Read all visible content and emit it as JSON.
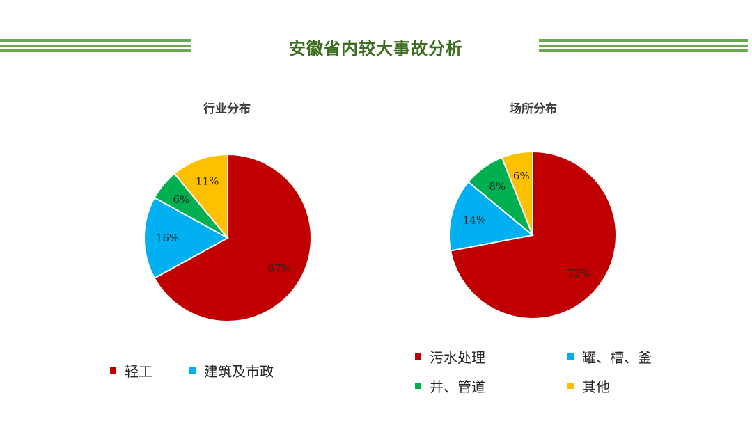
{
  "slide": {
    "title": "安徽省内较大事故分析"
  },
  "colors": {
    "accent_green": "#6aa84f",
    "title_green": "#3b6d1f"
  },
  "chart_data": [
    {
      "type": "pie",
      "title": "行业分布",
      "unit": "%",
      "slices": [
        {
          "label": "轻工",
          "value": 67,
          "color": "#c00000"
        },
        {
          "label": "建筑及市政",
          "value": 16,
          "color": "#00b0f0"
        },
        {
          "label": "",
          "value": 6,
          "color": "#00b050"
        },
        {
          "label": "",
          "value": 11,
          "color": "#ffc000"
        }
      ],
      "legend": [
        "轻工",
        "建筑及市政"
      ],
      "legend_position": "bottom"
    },
    {
      "type": "pie",
      "title": "场所分布",
      "unit": "%",
      "slices": [
        {
          "label": "污水处理",
          "value": 72,
          "color": "#c00000"
        },
        {
          "label": "罐、槽、釜",
          "value": 14,
          "color": "#00b0f0"
        },
        {
          "label": "井、管道",
          "value": 8,
          "color": "#00b050"
        },
        {
          "label": "其他",
          "value": 6,
          "color": "#ffc000"
        }
      ],
      "legend": [
        "污水处理",
        "罐、槽、釜",
        "井、管道",
        "其他"
      ],
      "legend_position": "bottom"
    }
  ]
}
